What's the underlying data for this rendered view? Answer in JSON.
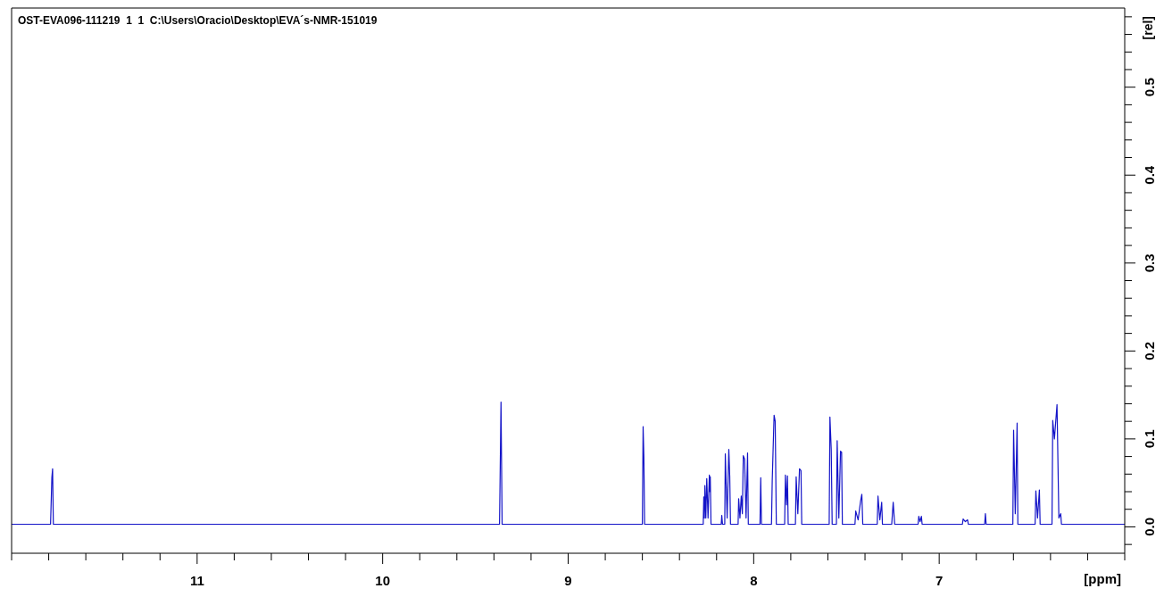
{
  "chart_data": {
    "type": "line",
    "title": "OST-EVA096-111219  1  1  C:\\Users\\Oracio\\Desktop\\EVA´s-NMR-151019",
    "xlabel": "[ppm]",
    "ylabel": "[rel]",
    "xlim": [
      12.0,
      6.0
    ],
    "ylim": [
      -0.03,
      0.59
    ],
    "xticks": [
      {
        "value": 12.0,
        "label": null
      },
      {
        "value": 11.8,
        "label": null
      },
      {
        "value": 11.6,
        "label": null
      },
      {
        "value": 11.4,
        "label": null
      },
      {
        "value": 11.2,
        "label": null
      },
      11,
      {
        "value": 10.8,
        "label": null
      },
      {
        "value": 10.6,
        "label": null
      },
      {
        "value": 10.4,
        "label": null
      },
      {
        "value": 10.2,
        "label": null
      },
      10,
      {
        "value": 9.8,
        "label": null
      },
      {
        "value": 9.6,
        "label": null
      },
      {
        "value": 9.4,
        "label": null
      },
      {
        "value": 9.2,
        "label": null
      },
      9,
      {
        "value": 8.8,
        "label": null
      },
      {
        "value": 8.6,
        "label": null
      },
      {
        "value": 8.4,
        "label": null
      },
      {
        "value": 8.2,
        "label": null
      },
      8,
      {
        "value": 7.8,
        "label": null
      },
      {
        "value": 7.6,
        "label": null
      },
      {
        "value": 7.4,
        "label": null
      },
      {
        "value": 7.2,
        "label": null
      },
      7,
      {
        "value": 6.8,
        "label": null
      },
      {
        "value": 6.6,
        "label": null
      },
      {
        "value": 6.4,
        "label": null
      },
      {
        "value": 6.2,
        "label": null
      },
      {
        "value": 6.0,
        "label": null
      }
    ],
    "yticks": [
      {
        "value": -0.02,
        "label": null
      },
      {
        "value": 0.0,
        "label": "0.0"
      },
      {
        "value": 0.02,
        "label": null
      },
      {
        "value": 0.04,
        "label": null
      },
      {
        "value": 0.06,
        "label": null
      },
      {
        "value": 0.08,
        "label": null
      },
      0.1,
      {
        "value": 0.12,
        "label": null
      },
      {
        "value": 0.14,
        "label": null
      },
      {
        "value": 0.16,
        "label": null
      },
      {
        "value": 0.18,
        "label": null
      },
      0.2,
      {
        "value": 0.22,
        "label": null
      },
      {
        "value": 0.24,
        "label": null
      },
      {
        "value": 0.26,
        "label": null
      },
      {
        "value": 0.28,
        "label": null
      },
      0.3,
      {
        "value": 0.32,
        "label": null
      },
      {
        "value": 0.34,
        "label": null
      },
      {
        "value": 0.36,
        "label": null
      },
      {
        "value": 0.38,
        "label": null
      },
      0.4,
      {
        "value": 0.42,
        "label": null
      },
      {
        "value": 0.44,
        "label": null
      },
      {
        "value": 0.46,
        "label": null
      },
      {
        "value": 0.48,
        "label": null
      },
      0.5,
      {
        "value": 0.52,
        "label": null
      },
      {
        "value": 0.54,
        "label": null
      },
      {
        "value": 0.56,
        "label": null
      },
      {
        "value": 0.58,
        "label": null
      }
    ],
    "marker": "none",
    "line_style": "solid",
    "series": [
      {
        "color": "#1414c8",
        "x": [
          12.0,
          11.79,
          11.783,
          11.779,
          11.775,
          9.37,
          9.365,
          9.362,
          9.356,
          8.6,
          8.596,
          8.592,
          8.588,
          8.272,
          8.269,
          8.266,
          8.263,
          8.258,
          8.253,
          8.246,
          8.239,
          8.236,
          8.234,
          8.23,
          8.175,
          8.172,
          8.168,
          8.156,
          8.153,
          8.143,
          8.134,
          8.129,
          8.125,
          8.084,
          8.081,
          8.074,
          8.067,
          8.061,
          8.056,
          8.049,
          8.041,
          8.033,
          8.029,
          7.966,
          7.962,
          7.958,
          7.904,
          7.9,
          7.89,
          7.884,
          7.878,
          7.833,
          7.829,
          7.823,
          7.818,
          7.814,
          7.775,
          7.771,
          7.762,
          7.753,
          7.745,
          7.741,
          7.593,
          7.589,
          7.582,
          7.577,
          7.554,
          7.55,
          7.541,
          7.532,
          7.526,
          7.522,
          7.454,
          7.45,
          7.437,
          7.424,
          7.417,
          7.412,
          7.334,
          7.33,
          7.32,
          7.31,
          7.306,
          7.256,
          7.248,
          7.24,
          7.114,
          7.11,
          7.103,
          7.096,
          7.092,
          6.875,
          6.871,
          6.859,
          6.847,
          6.843,
          6.755,
          6.751,
          6.747,
          6.603,
          6.599,
          6.59,
          6.58,
          6.576,
          6.483,
          6.479,
          6.47,
          6.46,
          6.456,
          6.392,
          6.388,
          6.379,
          6.365,
          6.355,
          6.345,
          6.341,
          6.0
        ],
        "values": [
          0.003,
          0.003,
          0.056,
          0.066,
          0.003,
          0.003,
          0.088,
          0.142,
          0.003,
          0.003,
          0.114,
          0.08,
          0.003,
          0.003,
          0.034,
          0.01,
          0.047,
          0.01,
          0.055,
          0.01,
          0.059,
          0.04,
          0.057,
          0.003,
          0.003,
          0.013,
          0.003,
          0.003,
          0.083,
          0.01,
          0.088,
          0.057,
          0.003,
          0.003,
          0.032,
          0.01,
          0.035,
          0.015,
          0.081,
          0.077,
          0.01,
          0.084,
          0.003,
          0.003,
          0.056,
          0.003,
          0.003,
          0.053,
          0.127,
          0.12,
          0.003,
          0.003,
          0.059,
          0.025,
          0.058,
          0.003,
          0.003,
          0.057,
          0.015,
          0.066,
          0.064,
          0.003,
          0.003,
          0.125,
          0.088,
          0.003,
          0.003,
          0.098,
          0.01,
          0.086,
          0.085,
          0.003,
          0.003,
          0.018,
          0.008,
          0.029,
          0.037,
          0.003,
          0.003,
          0.035,
          0.008,
          0.028,
          0.003,
          0.003,
          0.028,
          0.003,
          0.003,
          0.012,
          0.006,
          0.012,
          0.003,
          0.003,
          0.009,
          0.006,
          0.008,
          0.003,
          0.003,
          0.015,
          0.003,
          0.003,
          0.11,
          0.015,
          0.118,
          0.003,
          0.003,
          0.041,
          0.01,
          0.042,
          0.003,
          0.003,
          0.121,
          0.1,
          0.139,
          0.01,
          0.015,
          0.003,
          0.003
        ]
      }
    ]
  }
}
